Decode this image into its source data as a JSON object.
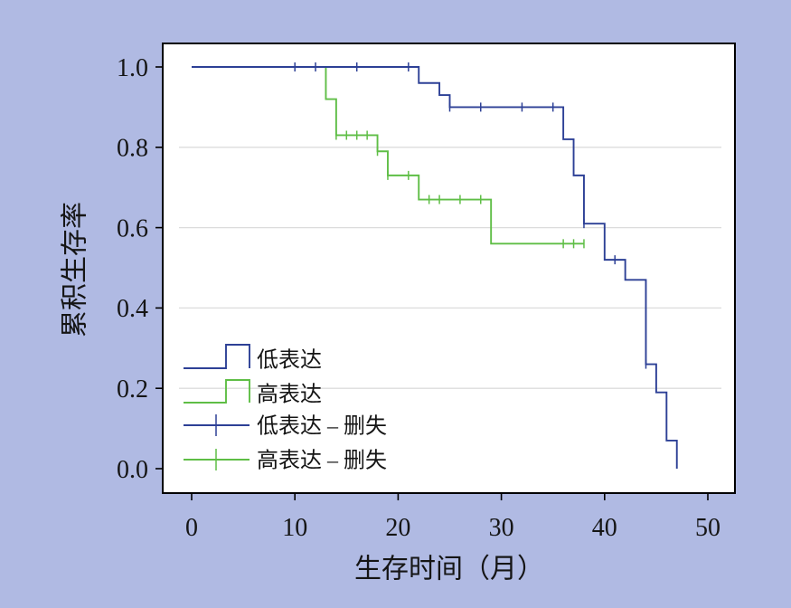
{
  "chart_data": {
    "type": "line",
    "step": true,
    "xlabel": "生存时间（月）",
    "ylabel": "累积生存率",
    "xlim": [
      0,
      50
    ],
    "ylim": [
      0,
      1
    ],
    "x_ticks": [
      "0",
      "10",
      "20",
      "30",
      "40",
      "50"
    ],
    "y_ticks": [
      "0.0",
      "0.2",
      "0.4",
      "0.6",
      "0.8",
      "1.0"
    ],
    "grid": true,
    "legend": "bottom-left",
    "series": [
      {
        "name": "低表达",
        "censored_label": "低表达 – 删失",
        "color": "#2d4096",
        "x": [
          0,
          22,
          24,
          25,
          36,
          37,
          38,
          40,
          42,
          44,
          45,
          46,
          47
        ],
        "y": [
          1.0,
          0.96,
          0.93,
          0.9,
          0.82,
          0.73,
          0.61,
          0.52,
          0.47,
          0.26,
          0.19,
          0.07,
          0.0
        ],
        "censored": {
          "x": [
            10,
            12,
            16,
            21,
            25,
            28,
            32,
            35,
            38,
            41,
            44
          ],
          "y": [
            1.0,
            1.0,
            1.0,
            1.0,
            0.9,
            0.9,
            0.9,
            0.9,
            0.61,
            0.52,
            0.26
          ]
        }
      },
      {
        "name": "高表达",
        "censored_label": "高表达 – 删失",
        "color": "#5fbe46",
        "x": [
          0,
          13,
          14,
          18,
          19,
          22,
          29,
          38
        ],
        "y": [
          1.0,
          0.92,
          0.83,
          0.79,
          0.73,
          0.67,
          0.56,
          0.56
        ],
        "censored": {
          "x": [
            14,
            15,
            16,
            17,
            18,
            19,
            21,
            23,
            24,
            26,
            28,
            36,
            37,
            38
          ],
          "y": [
            0.83,
            0.83,
            0.83,
            0.83,
            0.79,
            0.73,
            0.73,
            0.67,
            0.67,
            0.67,
            0.67,
            0.56,
            0.56,
            0.56
          ]
        }
      }
    ]
  },
  "colors": {
    "background": "#b0bae3",
    "plot_background": "#ffffff",
    "grid": "#dcdcdc"
  }
}
